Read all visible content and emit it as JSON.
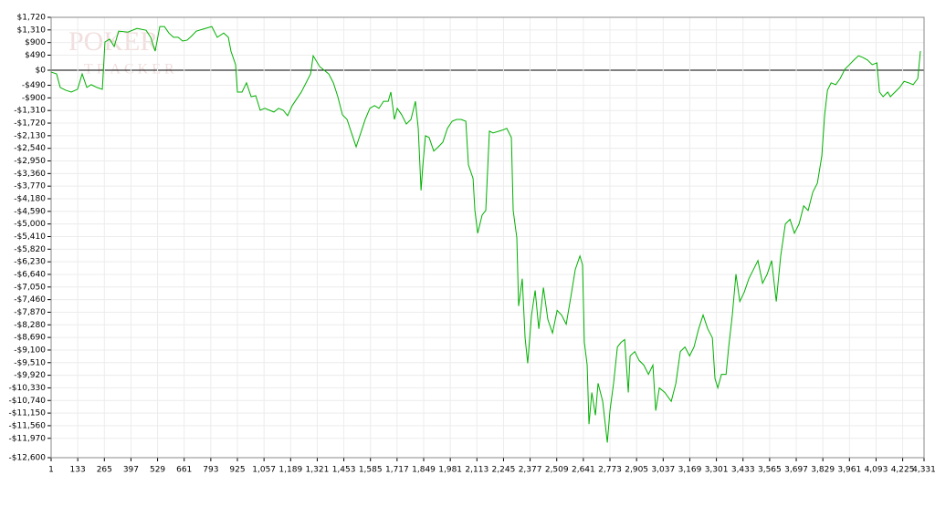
{
  "chart_data": {
    "type": "line",
    "watermark": "POKER",
    "watermark_sub": "TRACKER",
    "xlim": [
      1,
      4331
    ],
    "ylim": [
      -12600,
      1720
    ],
    "grid": true,
    "xticks": [
      1,
      133,
      265,
      397,
      529,
      661,
      793,
      925,
      {
        "value": 1057,
        "label": "1,057"
      },
      {
        "value": 1189,
        "label": "1,189"
      },
      {
        "value": 1321,
        "label": "1,321"
      },
      {
        "value": 1453,
        "label": "1,453"
      },
      {
        "value": 1585,
        "label": "1,585"
      },
      {
        "value": 1717,
        "label": "1,717"
      },
      {
        "value": 1849,
        "label": "1,849"
      },
      {
        "value": 1981,
        "label": "1,981"
      },
      {
        "value": 2113,
        "label": "2,113"
      },
      {
        "value": 2245,
        "label": "2,245"
      },
      {
        "value": 2377,
        "label": "2,377"
      },
      {
        "value": 2509,
        "label": "2,509"
      },
      {
        "value": 2641,
        "label": "2,641"
      },
      {
        "value": 2773,
        "label": "2,773"
      },
      {
        "value": 2905,
        "label": "2,905"
      },
      {
        "value": 3037,
        "label": "3,037"
      },
      {
        "value": 3169,
        "label": "3,169"
      },
      {
        "value": 3301,
        "label": "3,301"
      },
      {
        "value": 3433,
        "label": "3,433"
      },
      {
        "value": 3565,
        "label": "3,565"
      },
      {
        "value": 3697,
        "label": "3,697"
      },
      {
        "value": 3829,
        "label": "3,829"
      },
      {
        "value": 3961,
        "label": "3,961"
      },
      {
        "value": 4093,
        "label": "4,093"
      },
      {
        "value": 4225,
        "label": "4,225"
      },
      {
        "value": 4331,
        "label": "4,331"
      }
    ],
    "yticks": [
      {
        "value": 1720,
        "label": "$1,720"
      },
      {
        "value": 1310,
        "label": "$1,310"
      },
      {
        "value": 900,
        "label": "$900"
      },
      {
        "value": 490,
        "label": "$490"
      },
      {
        "value": 0,
        "label": "$0"
      },
      {
        "value": -490,
        "label": "-$490"
      },
      {
        "value": -900,
        "label": "-$900"
      },
      {
        "value": -1310,
        "label": "-$1,310"
      },
      {
        "value": -1720,
        "label": "-$1,720"
      },
      {
        "value": -2130,
        "label": "-$2,130"
      },
      {
        "value": -2540,
        "label": "-$2,540"
      },
      {
        "value": -2950,
        "label": "-$2,950"
      },
      {
        "value": -3360,
        "label": "-$3,360"
      },
      {
        "value": -3770,
        "label": "-$3,770"
      },
      {
        "value": -4180,
        "label": "-$4,180"
      },
      {
        "value": -4590,
        "label": "-$4,590"
      },
      {
        "value": -5000,
        "label": "-$5,000"
      },
      {
        "value": -5410,
        "label": "-$5,410"
      },
      {
        "value": -5820,
        "label": "-$5,820"
      },
      {
        "value": -6230,
        "label": "-$6,230"
      },
      {
        "value": -6640,
        "label": "-$6,640"
      },
      {
        "value": -7050,
        "label": "-$7,050"
      },
      {
        "value": -7460,
        "label": "-$7,460"
      },
      {
        "value": -7870,
        "label": "-$7,870"
      },
      {
        "value": -8280,
        "label": "-$8,280"
      },
      {
        "value": -8690,
        "label": "-$8,690"
      },
      {
        "value": -9100,
        "label": "-$9,100"
      },
      {
        "value": -9510,
        "label": "-$9,510"
      },
      {
        "value": -9920,
        "label": "-$9,920"
      },
      {
        "value": -10330,
        "label": "-$10,330"
      },
      {
        "value": -10740,
        "label": "-$10,740"
      },
      {
        "value": -11150,
        "label": "-$11,150"
      },
      {
        "value": -11560,
        "label": "-$11,560"
      },
      {
        "value": -11970,
        "label": "-$11,970"
      },
      {
        "value": -12600,
        "label": "-$12,600"
      }
    ],
    "x": [
      1,
      28,
      46,
      73,
      101,
      132,
      155,
      178,
      200,
      228,
      255,
      268,
      291,
      314,
      336,
      382,
      427,
      472,
      495,
      517,
      540,
      563,
      585,
      608,
      631,
      653,
      676,
      699,
      721,
      767,
      798,
      825,
      857,
      880,
      893,
      916,
      925,
      948,
      970,
      993,
      1016,
      1038,
      1061,
      1084,
      1106,
      1129,
      1152,
      1174,
      1197,
      1242,
      1288,
      1301,
      1333,
      1378,
      1401,
      1423,
      1446,
      1469,
      1491,
      1514,
      1537,
      1559,
      1582,
      1605,
      1627,
      1650,
      1673,
      1686,
      1704,
      1718,
      1740,
      1763,
      1786,
      1808,
      1822,
      1836,
      1845,
      1858,
      1876,
      1899,
      1922,
      1944,
      1967,
      1990,
      2012,
      2035,
      2058,
      2071,
      2094,
      2103,
      2117,
      2139,
      2157,
      2175,
      2193,
      2239,
      2261,
      2284,
      2293,
      2311,
      2320,
      2338,
      2352,
      2365,
      2384,
      2402,
      2420,
      2443,
      2465,
      2488,
      2511,
      2533,
      2556,
      2579,
      2601,
      2624,
      2637,
      2646,
      2660,
      2669,
      2683,
      2701,
      2714,
      2737,
      2760,
      2773,
      2791,
      2810,
      2828,
      2846,
      2864,
      2873,
      2896,
      2918,
      2941,
      2964,
      2986,
      3000,
      3018,
      3045,
      3077,
      3100,
      3122,
      3145,
      3168,
      3190,
      3213,
      3235,
      3258,
      3281,
      3294,
      3308,
      3326,
      3349,
      3362,
      3380,
      3398,
      3417,
      3439,
      3462,
      3485,
      3507,
      3530,
      3553,
      3575,
      3598,
      3620,
      3643,
      3666,
      3688,
      3711,
      3734,
      3756,
      3779,
      3802,
      3824,
      3838,
      3852,
      3870,
      3893,
      3915,
      3938,
      3961,
      3983,
      4006,
      4029,
      4051,
      4074,
      4097,
      4110,
      4128,
      4151,
      4164,
      4187,
      4210,
      4232,
      4255,
      4277,
      4300,
      4313
    ],
    "series": [
      {
        "color": "#00b000",
        "values": [
          -60,
          -120,
          -560,
          -650,
          -710,
          -620,
          -120,
          -560,
          -470,
          -560,
          -620,
          920,
          1010,
          770,
          1270,
          1240,
          1360,
          1300,
          1070,
          620,
          1420,
          1420,
          1210,
          1070,
          1070,
          950,
          980,
          1120,
          1270,
          1360,
          1420,
          1070,
          1210,
          1070,
          620,
          180,
          -710,
          -710,
          -410,
          -860,
          -830,
          -1300,
          -1240,
          -1300,
          -1360,
          -1240,
          -1300,
          -1480,
          -1150,
          -710,
          -120,
          470,
          120,
          -120,
          -410,
          -860,
          -1450,
          -1600,
          -2040,
          -2490,
          -2040,
          -1600,
          -1240,
          -1150,
          -1240,
          -1010,
          -1010,
          -710,
          -1600,
          -1240,
          -1450,
          -1750,
          -1600,
          -1010,
          -1890,
          -3910,
          -3080,
          -2130,
          -2190,
          -2630,
          -2490,
          -2340,
          -1890,
          -1660,
          -1600,
          -1600,
          -1660,
          -3080,
          -3520,
          -4560,
          -5300,
          -4710,
          -4560,
          -1980,
          -2040,
          -1950,
          -1890,
          -2190,
          -4560,
          -5450,
          -7670,
          -6780,
          -8700,
          -9530,
          -7960,
          -7160,
          -8410,
          -7070,
          -8110,
          -8550,
          -7810,
          -7960,
          -8260,
          -7370,
          -6480,
          -6040,
          -6330,
          -8850,
          -9590,
          -11510,
          -10480,
          -11220,
          -10180,
          -10770,
          -12110,
          -11070,
          -10180,
          -9000,
          -8850,
          -8760,
          -10480,
          -9290,
          -9150,
          -9440,
          -9590,
          -9890,
          -9590,
          -11070,
          -10330,
          -10480,
          -10770,
          -10180,
          -9150,
          -9000,
          -9290,
          -9000,
          -8410,
          -7960,
          -8410,
          -8700,
          -10030,
          -10330,
          -9890,
          -9890,
          -9000,
          -7960,
          -6630,
          -7520,
          -7220,
          -6780,
          -6480,
          -6190,
          -6930,
          -6630,
          -6190,
          -7520,
          -6040,
          -5000,
          -4850,
          -5300,
          -5000,
          -4410,
          -4560,
          -3970,
          -3670,
          -2780,
          -1450,
          -650,
          -410,
          -470,
          -270,
          30,
          180,
          330,
          470,
          410,
          330,
          180,
          240,
          -710,
          -860,
          -710,
          -860,
          -710,
          -560,
          -360,
          -410,
          -470,
          -270,
          620
        ]
      }
    ]
  }
}
